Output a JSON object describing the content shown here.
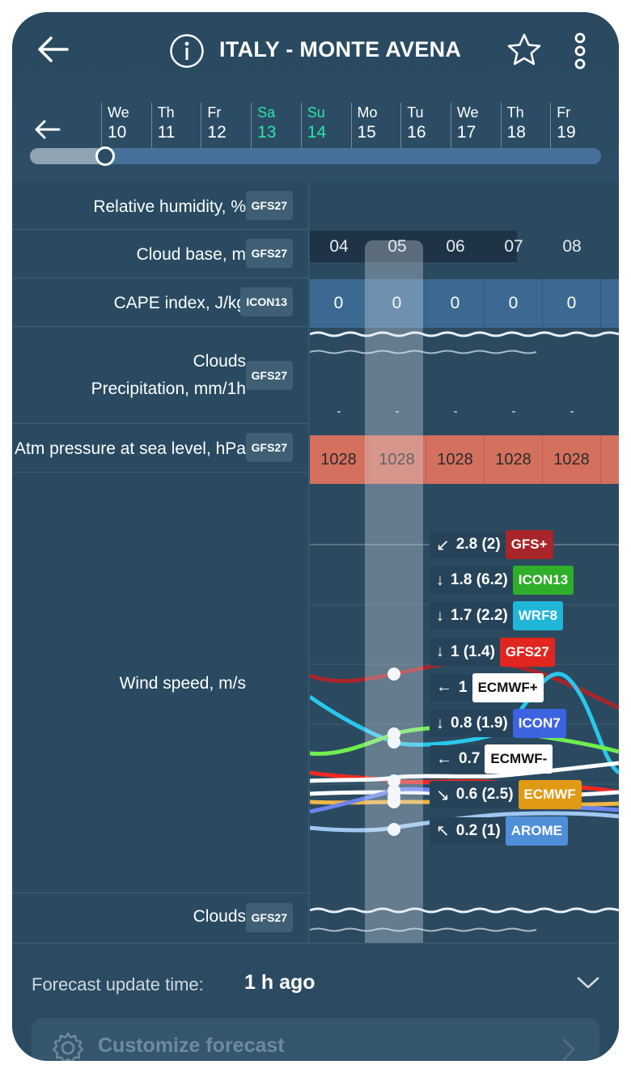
{
  "header": {
    "title": "ITALY - MONTE AVENA"
  },
  "days": [
    {
      "name": "We",
      "date": "10",
      "weekend": false
    },
    {
      "name": "Th",
      "date": "11",
      "weekend": false
    },
    {
      "name": "Fr",
      "date": "12",
      "weekend": false
    },
    {
      "name": "Sa",
      "date": "13",
      "weekend": true
    },
    {
      "name": "Su",
      "date": "14",
      "weekend": true
    },
    {
      "name": "Mo",
      "date": "15",
      "weekend": false
    },
    {
      "name": "Tu",
      "date": "16",
      "weekend": false
    },
    {
      "name": "We",
      "date": "17",
      "weekend": false
    },
    {
      "name": "Th",
      "date": "18",
      "weekend": false
    },
    {
      "name": "Fr",
      "date": "19",
      "weekend": false
    }
  ],
  "rows": {
    "humidity": {
      "label": "Relative humidity, %",
      "model": "GFS27"
    },
    "cloud_base": {
      "label": "Cloud base, m",
      "model": "GFS27"
    },
    "cape": {
      "label": "CAPE index, J/kg",
      "model": "ICON13"
    },
    "clouds_precip": {
      "label_line1": "Clouds",
      "label_line2": "Precipitation, mm/1h",
      "model": "GFS27"
    },
    "pressure": {
      "label": "Atm pressure at sea level, hPa",
      "model": "GFS27"
    },
    "wind": {
      "label": "Wind speed, m/s"
    },
    "clouds": {
      "label": "Clouds",
      "model": "GFS27"
    }
  },
  "hours": [
    "04",
    "05",
    "06",
    "07",
    "08"
  ],
  "cape_values": [
    "0",
    "0",
    "0",
    "0",
    "0"
  ],
  "precip_values": [
    "-",
    "-",
    "-",
    "-",
    "-"
  ],
  "pressure_values": [
    "1028",
    "1028",
    "1028",
    "1028",
    "1028"
  ],
  "wind_tooltips": [
    {
      "arrow": "↙",
      "value": "2.8 (2)",
      "model": "GFS+",
      "color": "#a8252a",
      "text_color": "#ffffff"
    },
    {
      "arrow": "↓",
      "value": "1.8 (6.2)",
      "model": "ICON13",
      "color": "#2fae2a",
      "text_color": "#ffffff"
    },
    {
      "arrow": "↓",
      "value": "1.7 (2.2)",
      "model": "WRF8",
      "color": "#1fb6d8",
      "text_color": "#ffffff"
    },
    {
      "arrow": "↓",
      "value": "1 (1.4)",
      "model": "GFS27",
      "color": "#e0261f",
      "text_color": "#ffffff"
    },
    {
      "arrow": "←",
      "value": "1",
      "model": "ECMWF+",
      "color": "#ffffff",
      "text_color": "#111111"
    },
    {
      "arrow": "↓",
      "value": "0.8 (1.9)",
      "model": "ICON7",
      "color": "#3c63e0",
      "text_color": "#ffffff"
    },
    {
      "arrow": "←",
      "value": "0.7",
      "model": "ECMWF-",
      "color": "#ffffff",
      "text_color": "#111111"
    },
    {
      "arrow": "↘",
      "value": "0.6 (2.5)",
      "model": "ECMWF",
      "color": "#e09a14",
      "text_color": "#ffffff"
    },
    {
      "arrow": "↖",
      "value": "0.2 (1)",
      "model": "AROME",
      "color": "#4f8fd8",
      "text_color": "#ffffff"
    }
  ],
  "legend": [
    {
      "name": "ICON13",
      "color": ""
    },
    {
      "name": "ECMWF",
      "color": "#f0b547"
    },
    {
      "name": "ICON7",
      "color": "#4f6bf0"
    },
    {
      "name": "AROME",
      "color": "#8fbdf0"
    }
  ],
  "footer": {
    "update_label": "Forecast update time:",
    "update_value": "1 h ago",
    "customize_label": "Customize forecast"
  }
}
